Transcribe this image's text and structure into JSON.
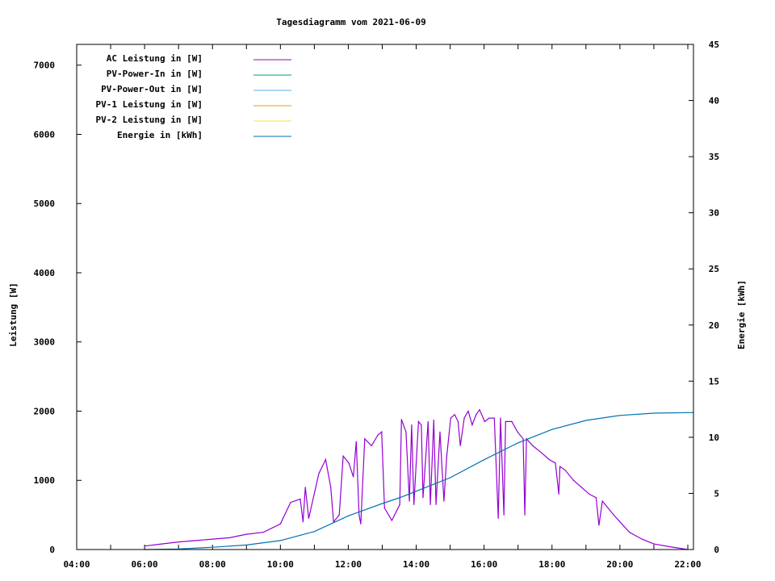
{
  "chart_data": {
    "type": "line",
    "title": "Tagesdiagramm vom 2021-06-09",
    "xlabel": "",
    "ylabel": "Leistung [W]",
    "y2label": "Energie [kWh]",
    "xlim": [
      "04:00",
      "22:10"
    ],
    "ylim": [
      0,
      7300
    ],
    "y2lim": [
      0,
      45
    ],
    "x_ticks": [
      "04:00",
      "06:00",
      "08:00",
      "10:00",
      "12:00",
      "14:00",
      "16:00",
      "18:00",
      "20:00",
      "22:00"
    ],
    "y_ticks": [
      "0",
      "1000",
      "2000",
      "3000",
      "4000",
      "5000",
      "6000",
      "7000"
    ],
    "y2_ticks": [
      "0",
      "5",
      "10",
      "15",
      "20",
      "25",
      "30",
      "35",
      "40",
      "45"
    ],
    "grid": false,
    "legend_placement": "top-left",
    "legend": [
      {
        "name": "AC Leistung in [W]",
        "color": "#9400D3"
      },
      {
        "name": "PV-Power-In in [W]",
        "color": "#009E73"
      },
      {
        "name": "PV-Power-Out in [W]",
        "color": "#56B4E9"
      },
      {
        "name": "PV-1 Leistung in [W]",
        "color": "#E69F00"
      },
      {
        "name": "PV-2 Leistung in [W]",
        "color": "#F0E442"
      },
      {
        "name": "Energie in [kWh]",
        "color": "#0072B2"
      }
    ],
    "series": [
      {
        "name": "AC Leistung in [W]",
        "axis": "y",
        "color": "#9400D3",
        "x": [
          "06:00",
          "06:30",
          "07:00",
          "07:30",
          "08:00",
          "08:30",
          "09:00",
          "09:30",
          "10:00",
          "10:18",
          "10:35",
          "10:40",
          "10:44",
          "10:50",
          "11:08",
          "11:20",
          "11:29",
          "11:34",
          "11:44",
          "11:51",
          "12:01",
          "12:09",
          "12:14",
          "12:19",
          "12:22",
          "12:29",
          "12:41",
          "12:52",
          "12:59",
          "13:04",
          "13:17",
          "13:31",
          "13:34",
          "13:42",
          "13:48",
          "13:52",
          "13:56",
          "14:04",
          "14:09",
          "14:12",
          "14:21",
          "14:25",
          "14:31",
          "14:35",
          "14:42",
          "14:49",
          "14:54",
          "15:01",
          "15:08",
          "15:14",
          "15:18",
          "15:25",
          "15:32",
          "15:39",
          "15:46",
          "15:52",
          "16:01",
          "16:09",
          "16:18",
          "16:25",
          "16:29",
          "16:35",
          "16:38",
          "16:49",
          "16:59",
          "17:09",
          "17:12",
          "17:15",
          "17:26",
          "17:41",
          "17:55",
          "18:06",
          "18:12",
          "18:14",
          "18:23",
          "18:38",
          "18:52",
          "19:06",
          "19:18",
          "19:23",
          "19:29",
          "19:49",
          "20:00",
          "20:17",
          "20:39",
          "21:00",
          "21:29",
          "22:00"
        ],
        "y": [
          50,
          80,
          110,
          130,
          150,
          170,
          220,
          250,
          370,
          680,
          730,
          400,
          900,
          450,
          1100,
          1300,
          900,
          400,
          500,
          1350,
          1250,
          1050,
          1560,
          500,
          370,
          1600,
          1500,
          1650,
          1700,
          600,
          420,
          650,
          1880,
          1700,
          700,
          1800,
          650,
          1850,
          1800,
          750,
          1850,
          650,
          1870,
          650,
          1700,
          700,
          1350,
          1900,
          1950,
          1850,
          1500,
          1900,
          2000,
          1800,
          1950,
          2020,
          1850,
          1900,
          1900,
          450,
          1900,
          500,
          1850,
          1850,
          1700,
          1600,
          500,
          1600,
          1500,
          1400,
          1300,
          1250,
          800,
          1200,
          1150,
          1000,
          900,
          800,
          750,
          350,
          700,
          500,
          400,
          250,
          150,
          80,
          40,
          0
        ]
      },
      {
        "name": "Energie in [kWh]",
        "axis": "y2",
        "color": "#0072B2",
        "x": [
          "06:00",
          "07:00",
          "08:00",
          "09:00",
          "10:00",
          "11:00",
          "12:00",
          "13:00",
          "13:30",
          "14:00",
          "15:00",
          "16:00",
          "17:00",
          "18:00",
          "19:00",
          "20:00",
          "21:00",
          "22:00",
          "22:10"
        ],
        "y": [
          0,
          0.05,
          0.2,
          0.4,
          0.8,
          1.6,
          3.0,
          4.1,
          4.6,
          5.2,
          6.4,
          8.0,
          9.5,
          10.7,
          11.5,
          11.95,
          12.15,
          12.2,
          12.2
        ]
      }
    ]
  }
}
